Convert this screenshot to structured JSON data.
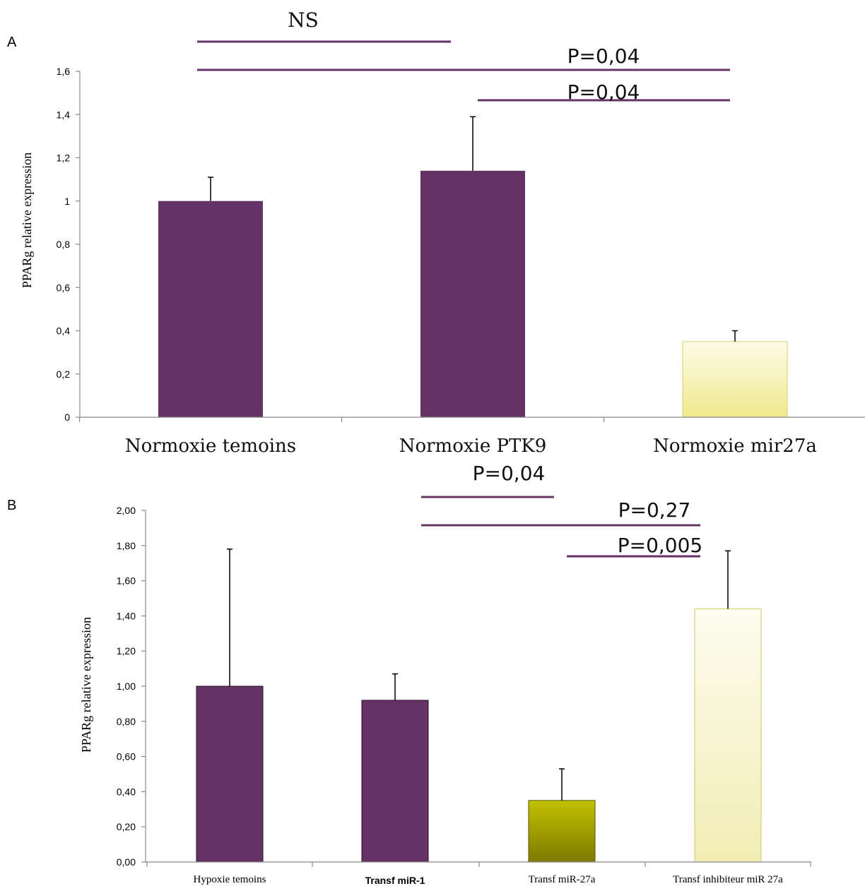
{
  "chart_data": [
    {
      "panel": "A",
      "type": "bar",
      "ylabel": "PPARg relative expression",
      "ylim": [
        0,
        1.6
      ],
      "yticks": [
        "0",
        "0,2",
        "0,4",
        "0,6",
        "0,8",
        "1",
        "1,2",
        "1,4",
        "1,6"
      ],
      "categories": [
        "Normoxie temoins",
        "Normoxie PTK9",
        "Normoxie mir27a"
      ],
      "values": [
        1.0,
        1.14,
        0.35
      ],
      "errors": [
        0.11,
        0.25,
        0.05
      ],
      "bar_colors": [
        "#643264",
        "#643264",
        "#F4EFA6"
      ],
      "significance": [
        {
          "label": "NS",
          "from": 0,
          "to": 1
        },
        {
          "label": "P=0,04",
          "from": 0,
          "to": 2
        },
        {
          "label": "P=0,04",
          "from": 1,
          "to": 2
        }
      ]
    },
    {
      "panel": "B",
      "type": "bar",
      "ylabel": "PPARg relative expression",
      "ylim": [
        0,
        2.0
      ],
      "yticks": [
        "0,00",
        "0,20",
        "0,40",
        "0,60",
        "0,80",
        "1,00",
        "1,20",
        "1,40",
        "1,60",
        "1,80",
        "2,00"
      ],
      "categories": [
        "Hypoxie temoins",
        "Transf miR-1",
        "Transf miR-27a",
        "Transf inhibiteur miR 27a"
      ],
      "values": [
        1.0,
        0.92,
        0.35,
        1.44
      ],
      "errors": [
        0.78,
        0.15,
        0.18,
        0.33
      ],
      "bar_colors": [
        "#643264",
        "#643264",
        "#A8A800",
        "#F8F4C6"
      ],
      "significance": [
        {
          "label": "P=0,04",
          "from": 1,
          "to": 2
        },
        {
          "label": "P=0,27",
          "from": 1,
          "to": 3
        },
        {
          "label": "P=0,005",
          "from": 2,
          "to": 3
        }
      ]
    }
  ]
}
